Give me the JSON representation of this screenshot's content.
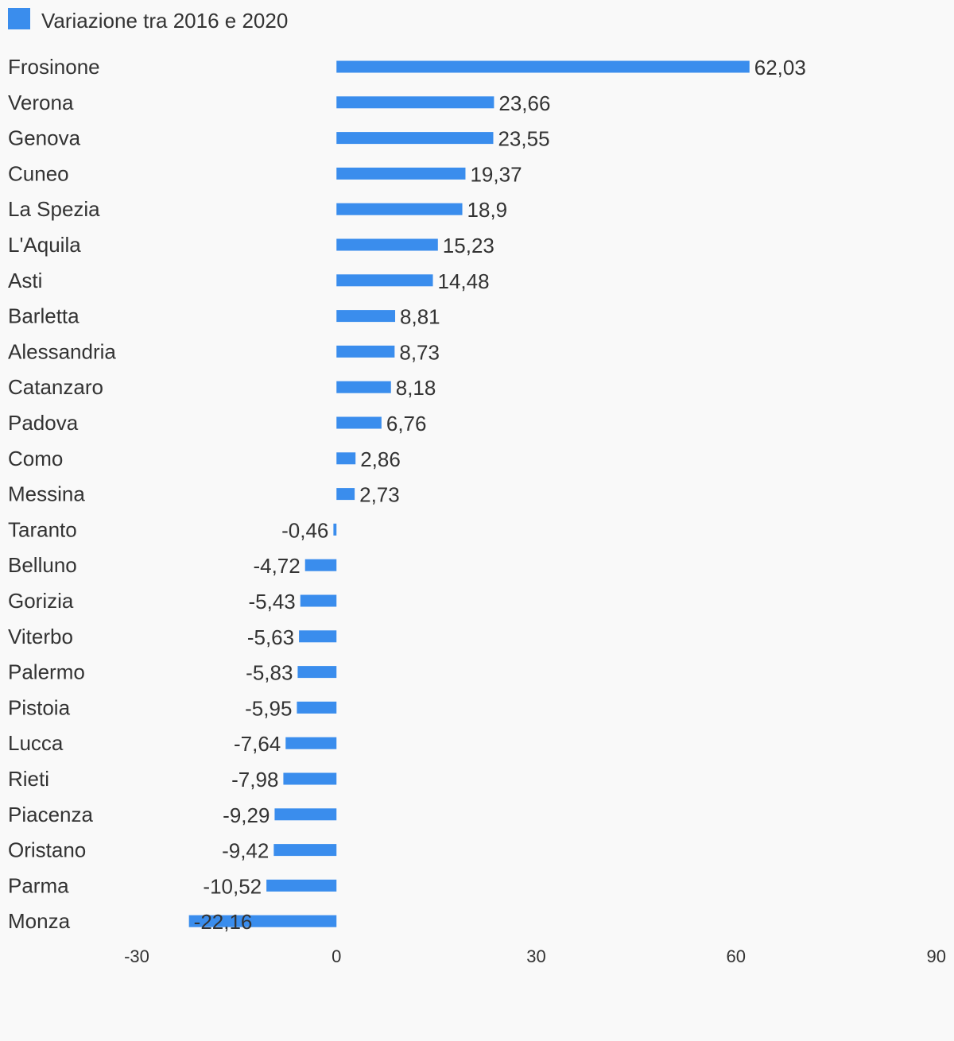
{
  "chart_data": {
    "type": "bar",
    "orientation": "horizontal",
    "categories": [
      "Frosinone",
      "Verona",
      "Genova",
      "Cuneo",
      "La Spezia",
      "L'Aquila",
      "Asti",
      "Barletta",
      "Alessandria",
      "Catanzaro",
      "Padova",
      "Como",
      "Messina",
      "Taranto",
      "Belluno",
      "Gorizia",
      "Viterbo",
      "Palermo",
      "Pistoia",
      "Lucca",
      "Rieti",
      "Piacenza",
      "Oristano",
      "Parma",
      "Monza"
    ],
    "series": [
      {
        "name": "Variazione tra 2016 e 2020",
        "color": "#3a8ded",
        "values": [
          62.03,
          23.66,
          23.55,
          19.37,
          18.9,
          15.23,
          14.48,
          8.81,
          8.73,
          8.18,
          6.76,
          2.86,
          2.73,
          -0.46,
          -4.72,
          -5.43,
          -5.63,
          -5.83,
          -5.95,
          -7.64,
          -7.98,
          -9.29,
          -9.42,
          -10.52,
          -22.16
        ],
        "labels": [
          "62,03",
          "23,66",
          "23,55",
          "19,37",
          "18,9",
          "15,23",
          "14,48",
          "8,81",
          "8,73",
          "8,18",
          "6,76",
          "2,86",
          "2,73",
          "-0,46",
          "-4,72",
          "-5,43",
          "-5,63",
          "-5,83",
          "-5,95",
          "-7,64",
          "-7,98",
          "-9,29",
          "-9,42",
          "-10,52",
          "-22,16"
        ]
      }
    ],
    "xlim": [
      -30,
      90
    ],
    "ticks": [
      -30,
      0,
      30,
      60,
      90
    ],
    "tick_labels": [
      "-30",
      "0",
      "30",
      "60",
      "90"
    ],
    "grid": false,
    "legend_position": "top-left"
  }
}
